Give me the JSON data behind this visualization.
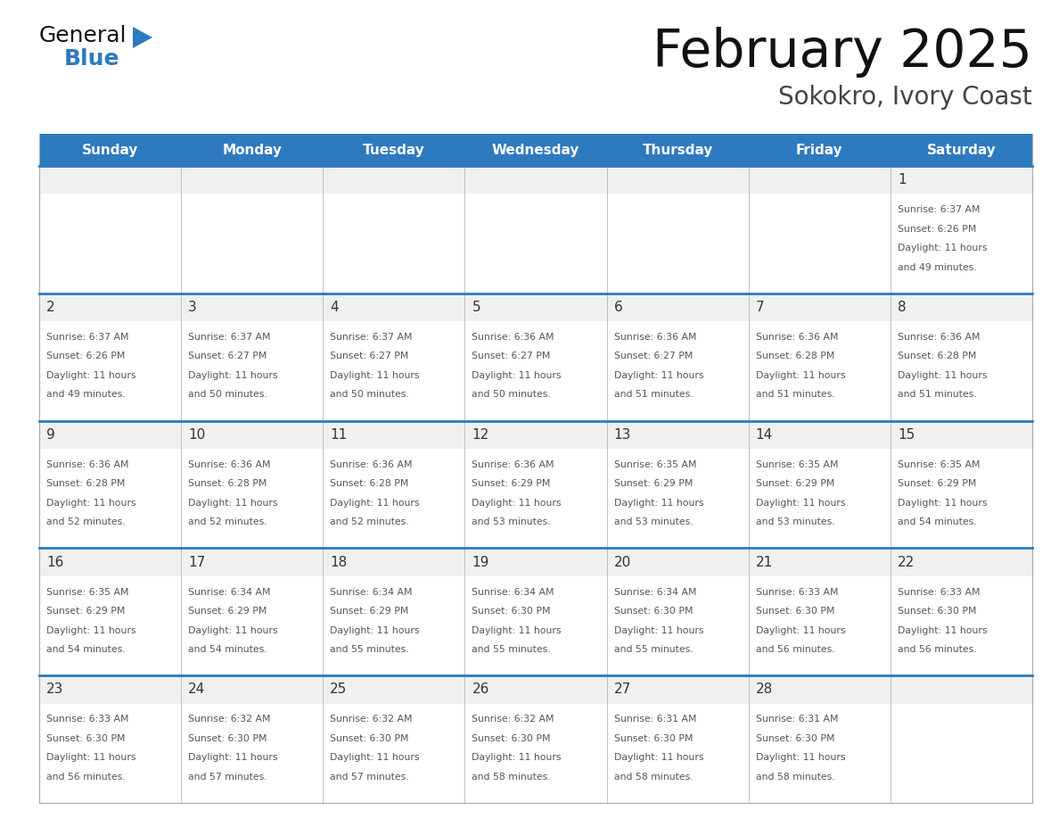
{
  "title": "February 2025",
  "subtitle": "Sokokro, Ivory Coast",
  "days_of_week": [
    "Sunday",
    "Monday",
    "Tuesday",
    "Wednesday",
    "Thursday",
    "Friday",
    "Saturday"
  ],
  "header_bg": "#2E7ABF",
  "header_text": "#FFFFFF",
  "cell_bg": "#FFFFFF",
  "cell_top_bg": "#F0F0F0",
  "cell_border_color": "#AAAAAA",
  "row_top_line_color": "#2E7ABF",
  "day_num_color": "#333333",
  "info_text_color": "#555555",
  "title_color": "#111111",
  "subtitle_color": "#444444",
  "logo_general_color": "#111111",
  "logo_blue_color": "#2E7ABF",
  "calendar_data": [
    [
      null,
      null,
      null,
      null,
      null,
      null,
      1
    ],
    [
      2,
      3,
      4,
      5,
      6,
      7,
      8
    ],
    [
      9,
      10,
      11,
      12,
      13,
      14,
      15
    ],
    [
      16,
      17,
      18,
      19,
      20,
      21,
      22
    ],
    [
      23,
      24,
      25,
      26,
      27,
      28,
      null
    ]
  ],
  "sunrise_sunset": {
    "1": {
      "rise": "6:37 AM",
      "set": "6:26 PM",
      "day_hours": 11,
      "day_min": 49
    },
    "2": {
      "rise": "6:37 AM",
      "set": "6:26 PM",
      "day_hours": 11,
      "day_min": 49
    },
    "3": {
      "rise": "6:37 AM",
      "set": "6:27 PM",
      "day_hours": 11,
      "day_min": 50
    },
    "4": {
      "rise": "6:37 AM",
      "set": "6:27 PM",
      "day_hours": 11,
      "day_min": 50
    },
    "5": {
      "rise": "6:36 AM",
      "set": "6:27 PM",
      "day_hours": 11,
      "day_min": 50
    },
    "6": {
      "rise": "6:36 AM",
      "set": "6:27 PM",
      "day_hours": 11,
      "day_min": 51
    },
    "7": {
      "rise": "6:36 AM",
      "set": "6:28 PM",
      "day_hours": 11,
      "day_min": 51
    },
    "8": {
      "rise": "6:36 AM",
      "set": "6:28 PM",
      "day_hours": 11,
      "day_min": 51
    },
    "9": {
      "rise": "6:36 AM",
      "set": "6:28 PM",
      "day_hours": 11,
      "day_min": 52
    },
    "10": {
      "rise": "6:36 AM",
      "set": "6:28 PM",
      "day_hours": 11,
      "day_min": 52
    },
    "11": {
      "rise": "6:36 AM",
      "set": "6:28 PM",
      "day_hours": 11,
      "day_min": 52
    },
    "12": {
      "rise": "6:36 AM",
      "set": "6:29 PM",
      "day_hours": 11,
      "day_min": 53
    },
    "13": {
      "rise": "6:35 AM",
      "set": "6:29 PM",
      "day_hours": 11,
      "day_min": 53
    },
    "14": {
      "rise": "6:35 AM",
      "set": "6:29 PM",
      "day_hours": 11,
      "day_min": 53
    },
    "15": {
      "rise": "6:35 AM",
      "set": "6:29 PM",
      "day_hours": 11,
      "day_min": 54
    },
    "16": {
      "rise": "6:35 AM",
      "set": "6:29 PM",
      "day_hours": 11,
      "day_min": 54
    },
    "17": {
      "rise": "6:34 AM",
      "set": "6:29 PM",
      "day_hours": 11,
      "day_min": 54
    },
    "18": {
      "rise": "6:34 AM",
      "set": "6:29 PM",
      "day_hours": 11,
      "day_min": 55
    },
    "19": {
      "rise": "6:34 AM",
      "set": "6:30 PM",
      "day_hours": 11,
      "day_min": 55
    },
    "20": {
      "rise": "6:34 AM",
      "set": "6:30 PM",
      "day_hours": 11,
      "day_min": 55
    },
    "21": {
      "rise": "6:33 AM",
      "set": "6:30 PM",
      "day_hours": 11,
      "day_min": 56
    },
    "22": {
      "rise": "6:33 AM",
      "set": "6:30 PM",
      "day_hours": 11,
      "day_min": 56
    },
    "23": {
      "rise": "6:33 AM",
      "set": "6:30 PM",
      "day_hours": 11,
      "day_min": 56
    },
    "24": {
      "rise": "6:32 AM",
      "set": "6:30 PM",
      "day_hours": 11,
      "day_min": 57
    },
    "25": {
      "rise": "6:32 AM",
      "set": "6:30 PM",
      "day_hours": 11,
      "day_min": 57
    },
    "26": {
      "rise": "6:32 AM",
      "set": "6:30 PM",
      "day_hours": 11,
      "day_min": 58
    },
    "27": {
      "rise": "6:31 AM",
      "set": "6:30 PM",
      "day_hours": 11,
      "day_min": 58
    },
    "28": {
      "rise": "6:31 AM",
      "set": "6:30 PM",
      "day_hours": 11,
      "day_min": 58
    }
  }
}
